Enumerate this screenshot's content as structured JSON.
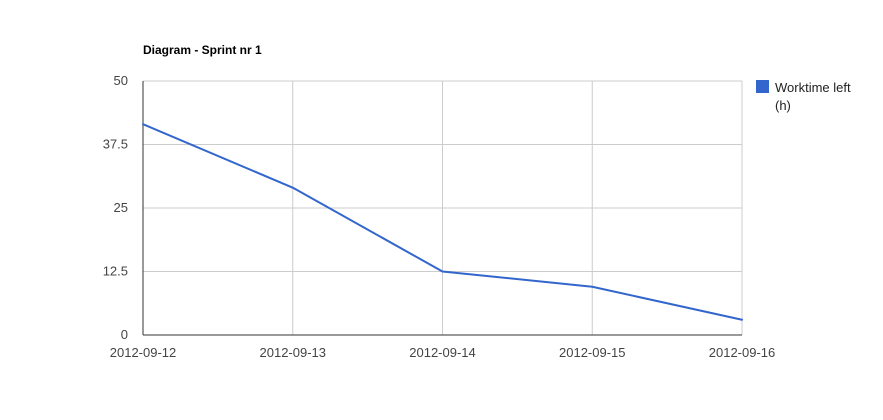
{
  "chart_data": {
    "type": "line",
    "title": "Diagram - Sprint nr 1",
    "xlabel": "",
    "ylabel": "",
    "categories": [
      "2012-09-12",
      "2012-09-13",
      "2012-09-14",
      "2012-09-15",
      "2012-09-16"
    ],
    "series": [
      {
        "name": "Worktime left (h)",
        "values": [
          41.5,
          29,
          12.5,
          9.5,
          3
        ],
        "color": "#3366cc"
      }
    ],
    "ylim": [
      0,
      50
    ],
    "yticks": [
      0,
      12.5,
      25,
      37.5,
      50
    ],
    "ytick_labels": [
      "0",
      "12.5",
      "25",
      "37.5",
      "50"
    ],
    "grid": true,
    "legend": {
      "position": "right",
      "lines": [
        "Worktime left",
        "(h)"
      ]
    }
  }
}
